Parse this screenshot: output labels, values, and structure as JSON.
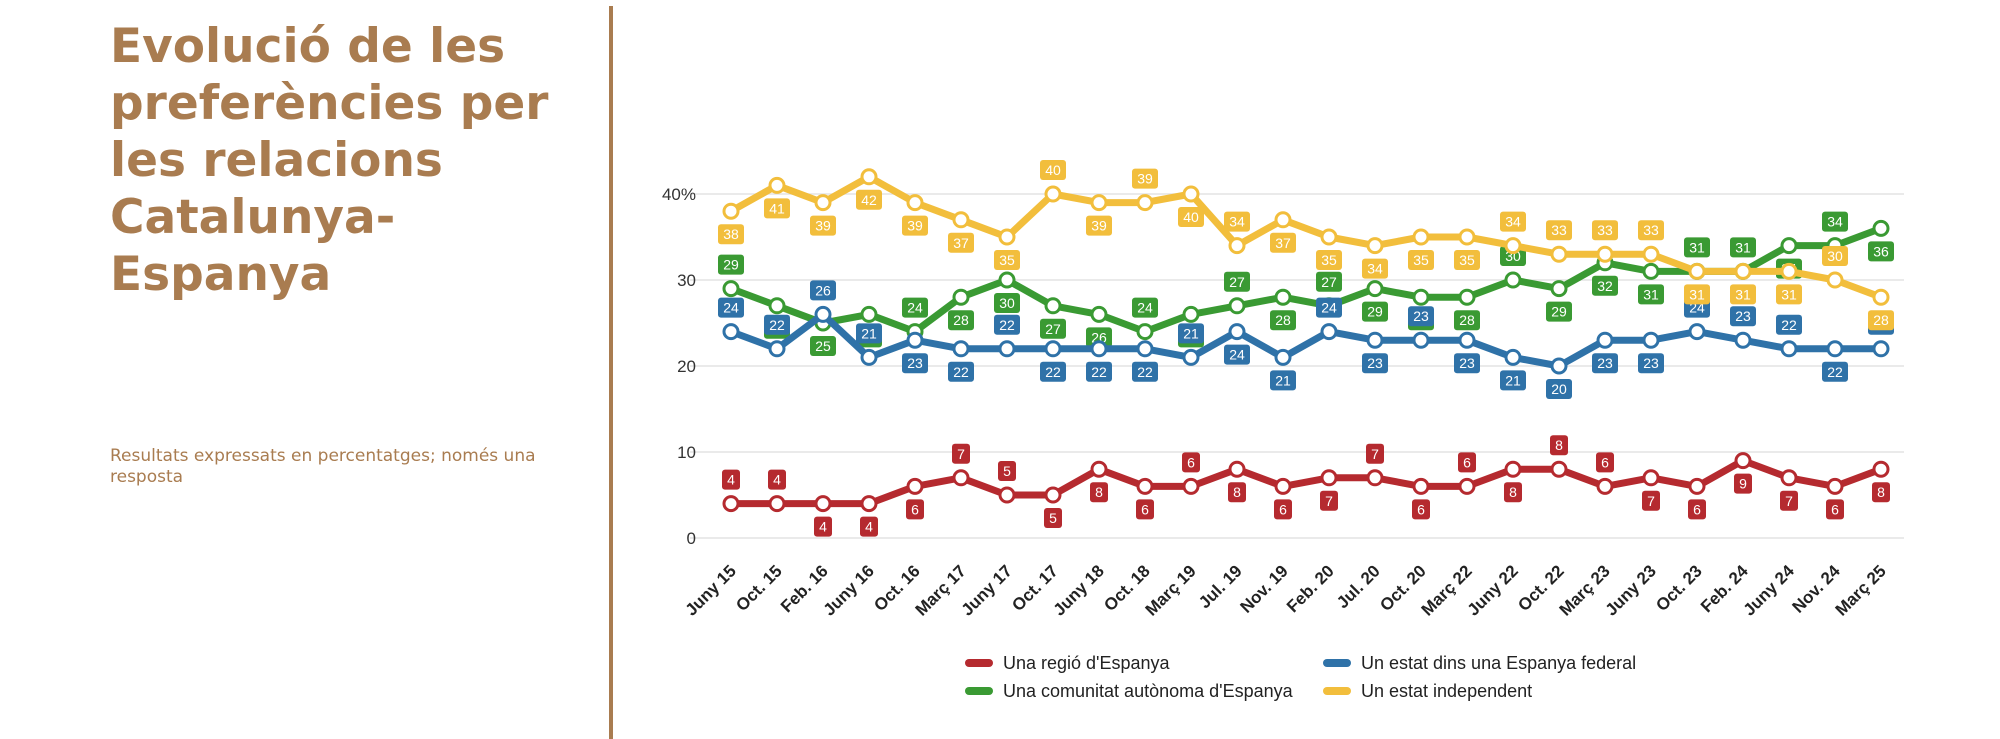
{
  "page": {
    "title": "Evolució de les preferències per les relacions Catalunya-Espanya",
    "subtitle": "Resultats expressats en percentatges; només una resposta"
  },
  "chart_data": {
    "type": "line",
    "title": "",
    "xlabel": "",
    "ylabel": "",
    "ylim": [
      0,
      40
    ],
    "yticks": [
      "0",
      "10",
      "20",
      "30",
      "40%"
    ],
    "grid": true,
    "legend_position": "bottom",
    "categories": [
      "Juny 15",
      "Oct. 15",
      "Feb. 16",
      "Juny 16",
      "Oct. 16",
      "Març 17",
      "Juny 17",
      "Oct. 17",
      "Juny 18",
      "Oct. 18",
      "Març 19",
      "Jul. 19",
      "Nov. 19",
      "Feb. 20",
      "Jul. 20",
      "Oct. 20",
      "Març 22",
      "Juny 22",
      "Oct. 22",
      "Març 23",
      "Juny 23",
      "Oct. 23",
      "Feb. 24",
      "Juny 24",
      "Nov. 24",
      "Març 25"
    ],
    "series": [
      {
        "name": "Una regió d'Espanya",
        "color": "#B52A2F",
        "values": [
          4,
          4,
          4,
          4,
          6,
          7,
          5,
          5,
          8,
          6,
          6,
          8,
          6,
          7,
          7,
          6,
          6,
          8,
          8,
          6,
          7,
          6,
          9,
          7,
          6,
          8
        ],
        "label_side": [
          "above",
          "above",
          "below",
          "below",
          "below",
          "above",
          "above",
          "below",
          "below",
          "below",
          "above",
          "below",
          "below",
          "below",
          "above",
          "below",
          "above",
          "below",
          "above",
          "above",
          "below",
          "below",
          "below",
          "below",
          "below",
          "below"
        ]
      },
      {
        "name": "Una comunitat autònoma d'Espanya",
        "color": "#3A9A33",
        "values": [
          29,
          27,
          25,
          26,
          24,
          28,
          30,
          27,
          26,
          24,
          26,
          27,
          28,
          27,
          29,
          28,
          28,
          30,
          29,
          32,
          31,
          31,
          31,
          34,
          34,
          36
        ],
        "label_side": [
          "above",
          "below",
          "below",
          "below",
          "above",
          "below",
          "below",
          "below",
          "below",
          "above",
          "below",
          "above",
          "below",
          "above",
          "below",
          "below",
          "below",
          "above",
          "below",
          "below",
          "below",
          "above",
          "above",
          "below",
          "above",
          "below"
        ]
      },
      {
        "name": "Un estat dins una Espanya federal",
        "color": "#2F72A8",
        "values": [
          24,
          22,
          26,
          21,
          23,
          22,
          22,
          22,
          22,
          22,
          21,
          24,
          21,
          24,
          23,
          23,
          23,
          21,
          20,
          23,
          23,
          24,
          23,
          22,
          22,
          22
        ],
        "label_side": [
          "above",
          "above",
          "above",
          "above",
          "below",
          "below",
          "above",
          "below",
          "below",
          "below",
          "above",
          "below",
          "below",
          "above",
          "below",
          "above",
          "below",
          "below",
          "below",
          "below",
          "below",
          "above",
          "above",
          "above",
          "below",
          "above"
        ]
      },
      {
        "name": "Un estat independent",
        "color": "#F2BE3C",
        "values": [
          38,
          41,
          39,
          42,
          39,
          37,
          35,
          40,
          39,
          39,
          40,
          34,
          37,
          35,
          34,
          35,
          35,
          34,
          33,
          33,
          33,
          31,
          31,
          31,
          30,
          28
        ],
        "label_side": [
          "below",
          "below",
          "below",
          "below",
          "below",
          "below",
          "below",
          "above",
          "below",
          "above",
          "below",
          "above",
          "below",
          "below",
          "below",
          "below",
          "below",
          "above",
          "above",
          "above",
          "above",
          "below",
          "below",
          "below",
          "above",
          "below"
        ]
      }
    ]
  }
}
